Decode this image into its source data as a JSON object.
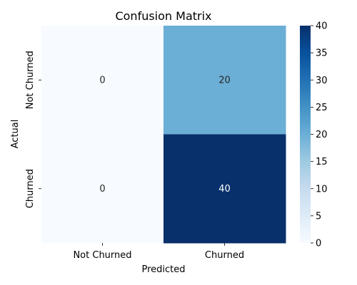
{
  "chart_data": {
    "type": "heatmap",
    "title": "Confusion Matrix",
    "xlabel": "Predicted",
    "ylabel": "Actual",
    "x_categories": [
      "Not Churned",
      "Churned"
    ],
    "y_categories": [
      "Not Churned",
      "Churned"
    ],
    "values": [
      [
        0,
        20
      ],
      [
        0,
        40
      ]
    ],
    "annotations": [
      "0",
      "20",
      "0",
      "40"
    ],
    "colormap": "Blues",
    "color_range": [
      0,
      40
    ],
    "colorbar_ticks": [
      "0",
      "5",
      "10",
      "15",
      "20",
      "25",
      "30",
      "35",
      "40"
    ],
    "colors": {
      "low": "#f7fbff",
      "mid": "#6baed6",
      "high": "#08306b"
    }
  }
}
